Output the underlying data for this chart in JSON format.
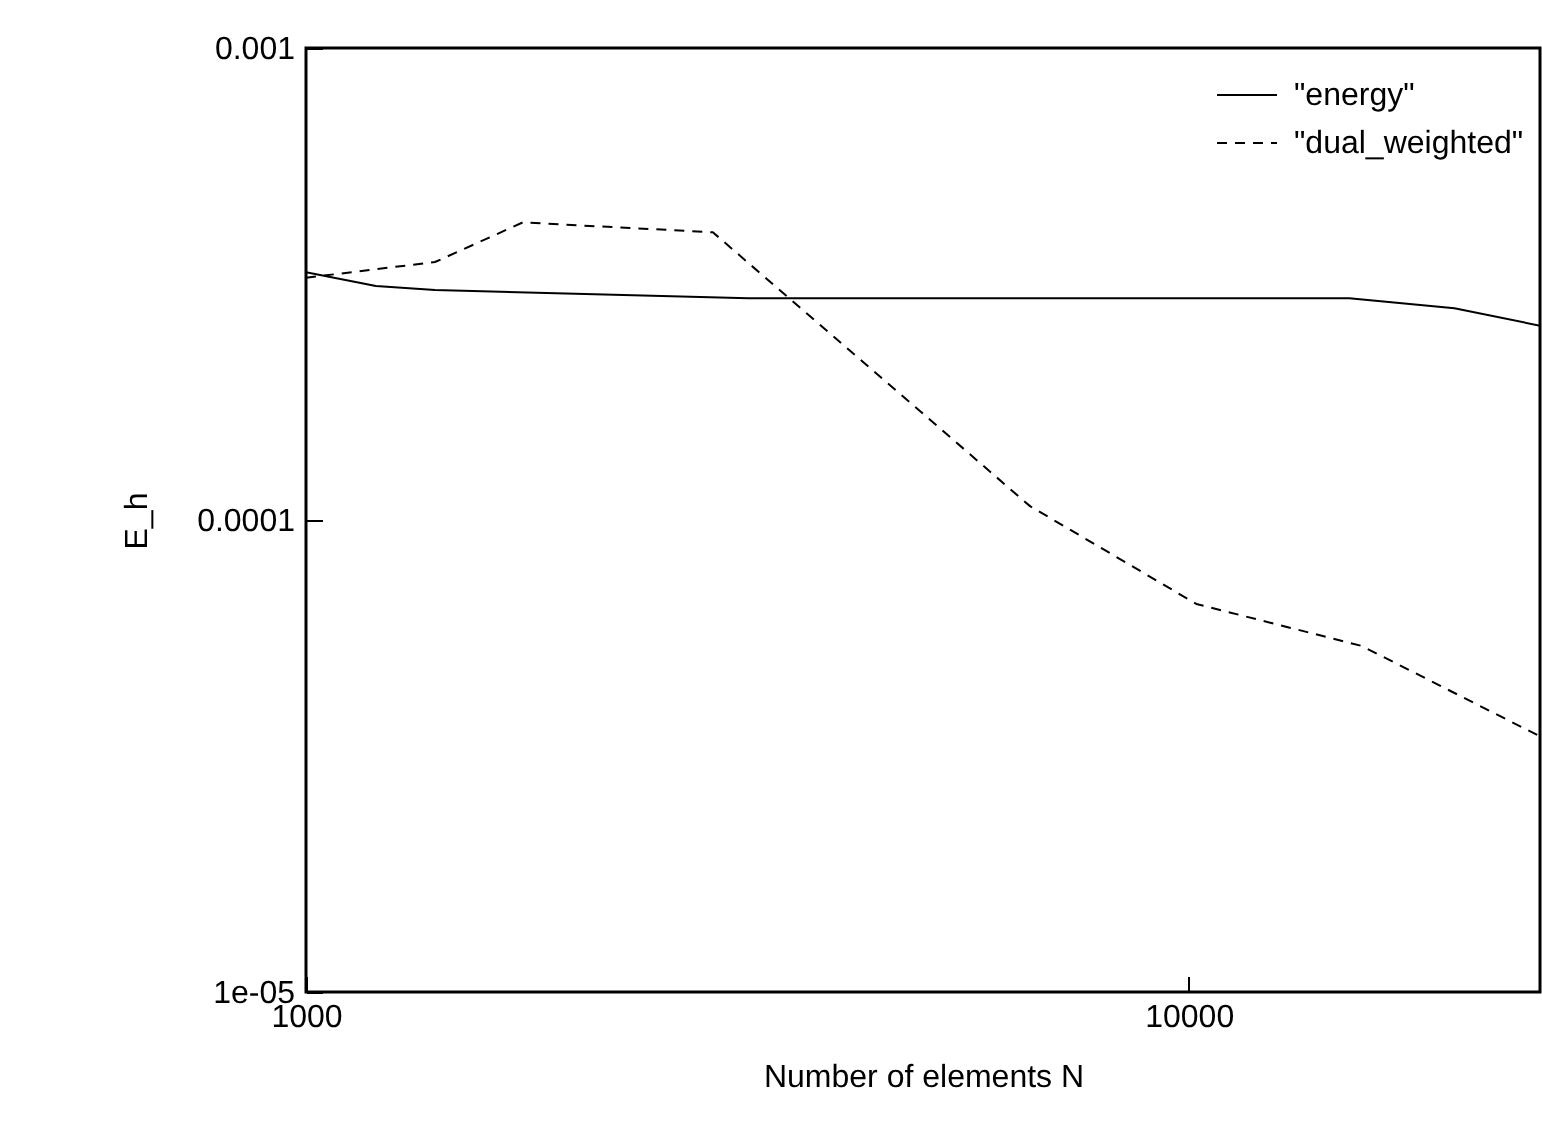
{
  "chart_data": {
    "type": "line",
    "xlabel": "Number of elements N",
    "ylabel": "E_h",
    "log": "xy",
    "xlim": [
      1000,
      25000
    ],
    "xticks": [
      1000,
      10000
    ],
    "ylim": [
      1e-05,
      0.001
    ],
    "yticks": [
      0.001,
      0.0001,
      {
        "value": 1e-05,
        "label": "1e-05"
      }
    ],
    "legend": "top right",
    "grid": false,
    "marker": "none",
    "series": [
      {
        "name": "\"energy\"",
        "color": "#000000",
        "line_style": "solid",
        "x": [
          1000,
          1200,
          1400,
          3170,
          15200,
          20000,
          25000
        ],
        "values": [
          0.000335,
          0.000313,
          0.000307,
          0.000295,
          0.000295,
          0.000281,
          0.000258
        ]
      },
      {
        "name": "\"dual_weighted\"",
        "color": "#000000",
        "line_style": "dashed",
        "x": [
          1000,
          1400,
          1760,
          2890,
          6610,
          10200,
          15700,
          25000
        ],
        "values": [
          0.000326,
          0.000352,
          0.000427,
          0.000407,
          0.000107,
          6.64e-05,
          5.41e-05,
          3.48e-05
        ]
      }
    ]
  }
}
